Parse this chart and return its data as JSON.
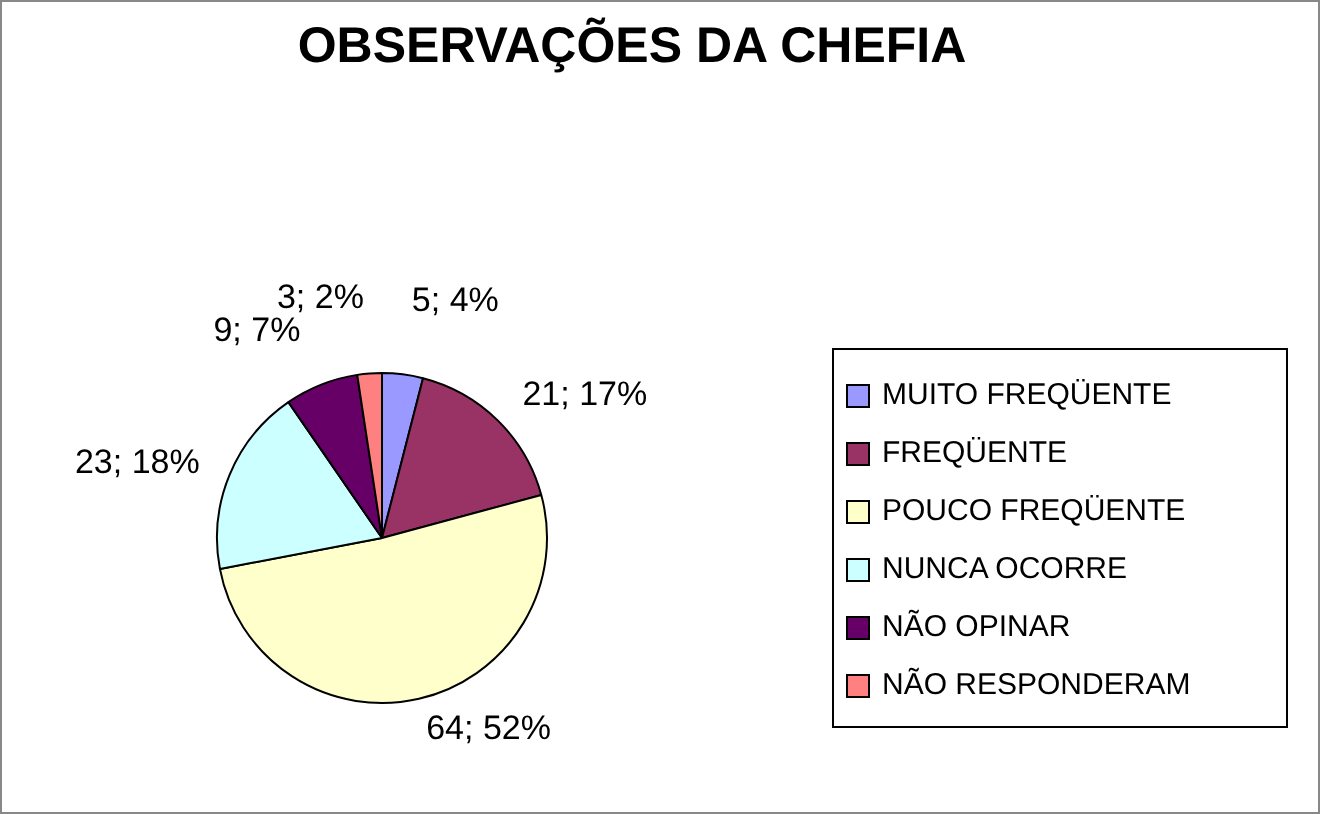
{
  "chart_data": {
    "type": "pie",
    "title": "OBSERVAÇÕES DA CHEFIA",
    "categories": [
      "MUITO FREQÜENTE",
      "FREQÜENTE",
      "POUCO FREQÜENTE",
      "NUNCA OCORRE",
      "NÃO OPINAR",
      "NÃO RESPONDERAM"
    ],
    "values": [
      5,
      21,
      64,
      23,
      9,
      3
    ],
    "colors": [
      "#9999ff",
      "#993366",
      "#ffffcc",
      "#ccffff",
      "#660066",
      "#ff8080"
    ],
    "value_labels": [
      "5; 4%",
      "21; 17%",
      "64; 52%",
      "23; 18%",
      "9; 7%",
      "3; 2%"
    ],
    "legend": "right"
  }
}
